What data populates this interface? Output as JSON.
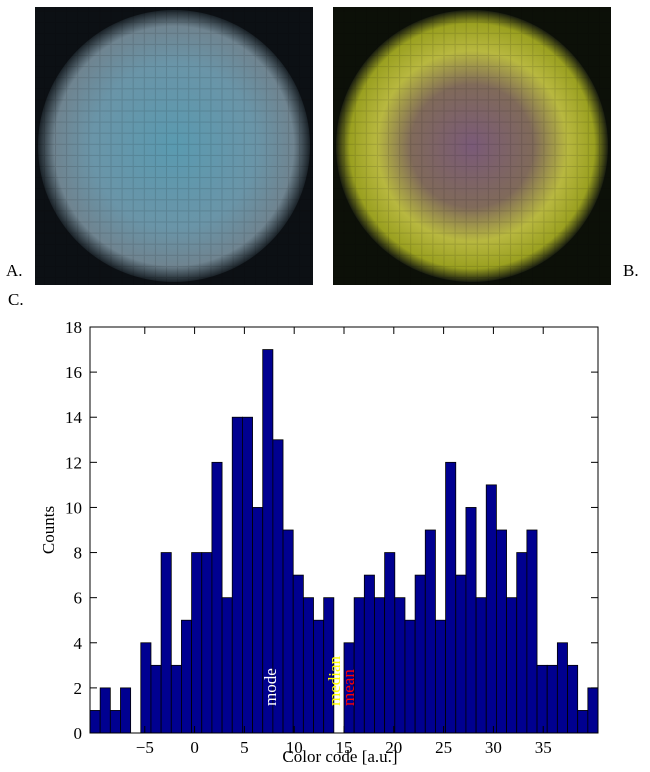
{
  "panel_labels": {
    "a": "A.",
    "b": "B.",
    "c": "C."
  },
  "chart_data": {
    "type": "histogram",
    "xlabel": "Color code [a.u.]",
    "ylabel": "Counts",
    "bins": [
      -10.5,
      -9.48,
      -8.46,
      -7.44,
      -6.42,
      -5.4,
      -4.38,
      -3.36,
      -2.34,
      -1.32,
      -0.3,
      0.72,
      1.74,
      2.76,
      3.78,
      4.8,
      5.82,
      6.84,
      7.86,
      8.88,
      9.9,
      10.92,
      11.94,
      12.96,
      13.98,
      15.0,
      16.02,
      17.04,
      18.06,
      19.08,
      20.1,
      21.12,
      22.14,
      23.16,
      24.18,
      25.2,
      26.22,
      27.24,
      28.26,
      29.28,
      30.3,
      31.32,
      32.34,
      33.36,
      34.38,
      35.4,
      36.42,
      37.44,
      38.46,
      39.48,
      40.5
    ],
    "values": [
      1,
      2,
      1,
      2,
      0,
      4,
      3,
      8,
      3,
      5,
      8,
      8,
      12,
      6,
      14,
      14,
      10,
      17,
      13,
      9,
      7,
      6,
      5,
      6,
      0,
      4,
      6,
      7,
      6,
      8,
      6,
      5,
      7,
      9,
      5,
      12,
      7,
      10,
      6,
      11,
      9,
      6,
      8,
      9,
      3,
      3,
      4,
      3,
      1,
      2
    ],
    "color": "#000090",
    "xlim": [
      -10.5,
      40.5
    ],
    "ylim": [
      0,
      18
    ],
    "xticks": [
      {
        "value": -5,
        "label": "−5"
      },
      0,
      5,
      10,
      15,
      20,
      25,
      30,
      35
    ],
    "yticks": [
      0,
      2,
      4,
      6,
      8,
      10,
      12,
      14,
      16,
      18
    ],
    "annotations": [
      {
        "text": "mode",
        "color": "#ffffff"
      },
      {
        "text": "median",
        "color": "#ffff00"
      },
      {
        "text": "mean",
        "color": "#ff0000"
      }
    ]
  }
}
